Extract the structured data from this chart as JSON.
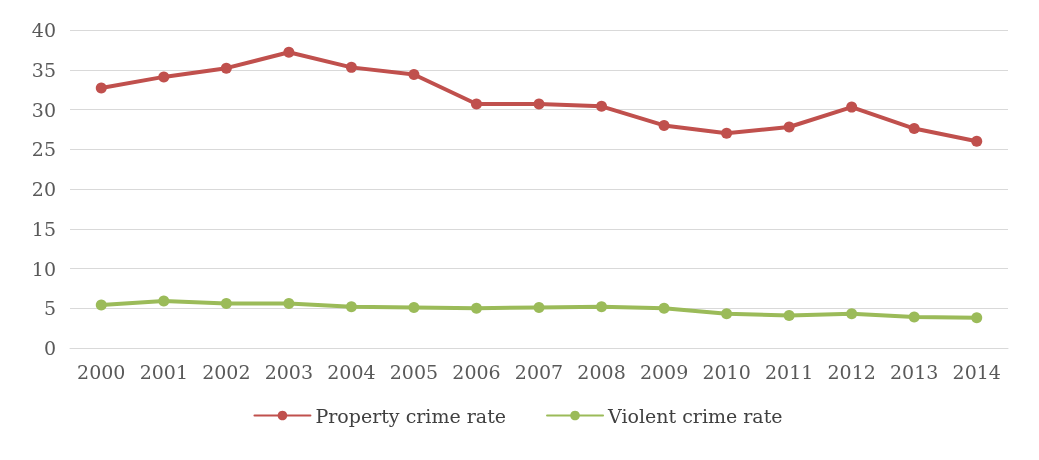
{
  "chart_data": {
    "type": "line",
    "categories": [
      "2000",
      "2001",
      "2002",
      "2003",
      "2004",
      "2005",
      "2006",
      "2007",
      "2008",
      "2009",
      "2010",
      "2011",
      "2012",
      "2013",
      "2014"
    ],
    "series": [
      {
        "name": "Property crime rate",
        "color": "#c0504d",
        "values": [
          32.7,
          34.1,
          35.2,
          37.2,
          35.3,
          34.4,
          30.7,
          30.7,
          30.4,
          28.0,
          27.0,
          27.8,
          30.3,
          27.6,
          26.0
        ]
      },
      {
        "name": "Violent crime rate",
        "color": "#9bbb59",
        "values": [
          5.4,
          5.9,
          5.6,
          5.6,
          5.2,
          5.1,
          5.0,
          5.1,
          5.2,
          5.0,
          4.3,
          4.1,
          4.3,
          3.9,
          3.8
        ]
      }
    ],
    "ylim": [
      0,
      40
    ],
    "yticks": [
      0,
      5,
      10,
      15,
      20,
      25,
      30,
      35,
      40
    ],
    "grid": "y",
    "legend": "bottom",
    "marker": "circle",
    "line_style": "solid"
  }
}
